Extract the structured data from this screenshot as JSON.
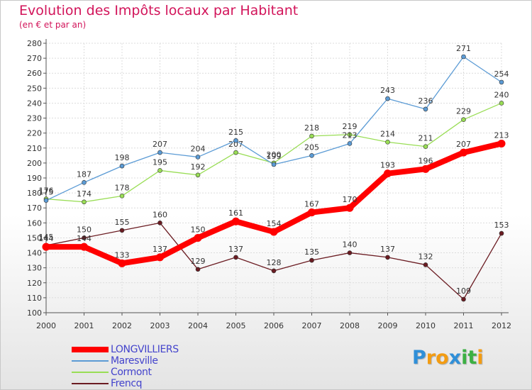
{
  "chart_data": {
    "type": "line",
    "title": "Evolution des Impôts locaux par Habitant",
    "subtitle": "(en € et par an)",
    "xlabel": "",
    "ylabel": "",
    "x": [
      "2000",
      "2001",
      "2002",
      "2003",
      "2004",
      "2005",
      "2006",
      "2007",
      "2008",
      "2009",
      "2010",
      "2011",
      "2012"
    ],
    "ylim": [
      100,
      280
    ],
    "yticks": [
      100,
      110,
      120,
      130,
      140,
      150,
      160,
      170,
      180,
      190,
      200,
      210,
      220,
      230,
      240,
      250,
      260,
      270,
      280
    ],
    "grid": true,
    "legend_position": "bottom-left",
    "series": [
      {
        "name": "Frencq",
        "color": "#6b1c22",
        "values": [
          145,
          150,
          155,
          160,
          129,
          137,
          128,
          135,
          140,
          137,
          132,
          109,
          153
        ]
      },
      {
        "name": "Cormont",
        "color": "#99dd55",
        "values": [
          176,
          174,
          178,
          195,
          192,
          207,
          200,
          218,
          219,
          214,
          211,
          229,
          240
        ]
      },
      {
        "name": "Maresville",
        "color": "#5b9bd5",
        "values": [
          175,
          187,
          198,
          207,
          204,
          215,
          199,
          205,
          213,
          243,
          236,
          271,
          254
        ]
      },
      {
        "name": "LONGVILLIERS",
        "color": "#ff0000",
        "values": [
          144,
          144,
          133,
          137,
          150,
          161,
          154,
          167,
          170,
          193,
          196,
          207,
          213
        ]
      }
    ]
  },
  "legend": [
    {
      "name": "LONGVILLIERS",
      "color": "#ff0000"
    },
    {
      "name": "Maresville",
      "color": "#5b9bd5"
    },
    {
      "name": "Cormont",
      "color": "#99dd55"
    },
    {
      "name": "Frencq",
      "color": "#6b1c22"
    }
  ],
  "logo": {
    "letters": [
      "P",
      "r",
      "o",
      "x",
      "i",
      "t",
      "i"
    ],
    "colors": [
      "#2f8fd8",
      "#f39c12",
      "#f39c12",
      "#2f8fd8",
      "#3cb043",
      "#3cb043",
      "#f39c12"
    ]
  }
}
